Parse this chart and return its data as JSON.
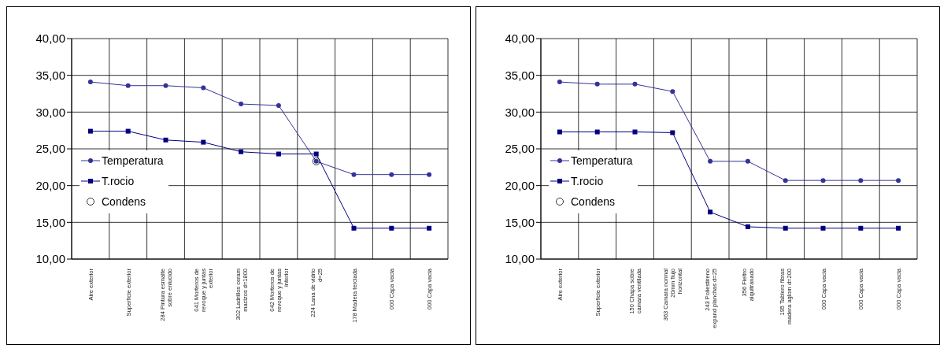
{
  "chart_data": [
    {
      "type": "line",
      "categories": [
        "Aire exterior",
        "Superficie exterior",
        "284 Pintura esmalte sobre enlucido",
        "041 Morteros de revoque y juntas exterior",
        "302 Ladrillos ceram macizos d=1800",
        "042 Morteros de revoque y juntas interior",
        "224 Lana de vidrio d=25",
        "178 Madera terciada",
        "000 Capa vacia",
        "000 Capa vacia"
      ],
      "series": [
        {
          "name": "Temperatura",
          "color": "#333399",
          "marker": "circle",
          "values": [
            34.1,
            33.6,
            33.6,
            33.3,
            31.1,
            30.9,
            23.3,
            21.5,
            21.5,
            21.5
          ]
        },
        {
          "name": "T.rocio",
          "color": "#000080",
          "marker": "square",
          "values": [
            27.4,
            27.4,
            26.2,
            25.9,
            24.6,
            24.3,
            24.3,
            14.2,
            14.2,
            14.2
          ]
        },
        {
          "name": "Condens",
          "type": "scatter",
          "color": "#000000",
          "marker": "circle",
          "values": [
            null,
            null,
            null,
            null,
            null,
            null,
            23.3,
            null,
            null,
            null
          ]
        }
      ],
      "ylim": [
        10,
        40
      ],
      "yticks": [
        {
          "value": 10,
          "label": "10,00"
        },
        {
          "value": 15,
          "label": "15,00"
        },
        {
          "value": 20,
          "label": "20,00"
        },
        {
          "value": 25,
          "label": "25,00"
        },
        {
          "value": 30,
          "label": "30,00"
        },
        {
          "value": 35,
          "label": "35,00"
        },
        {
          "value": 40,
          "label": "40,00"
        }
      ],
      "grid": true,
      "legend": "left"
    },
    {
      "type": "line",
      "categories": [
        "Aire exterior",
        "Superficie exterior",
        "150 Chapa sobre camara ventilada",
        "363 Camara normal 20mm flujo horizontal",
        "243 Poliestireno expand planchas d=25",
        "356 Fieltro alquitranado",
        "195 Tablero fibras madera aglom d=200",
        "000 Capa vacia",
        "000 Capa vacia",
        "000 Capa vacia"
      ],
      "series": [
        {
          "name": "Temperatura",
          "color": "#333399",
          "marker": "circle",
          "values": [
            34.1,
            33.8,
            33.8,
            32.8,
            23.3,
            23.3,
            20.7,
            20.7,
            20.7,
            20.7
          ]
        },
        {
          "name": "T.rocio",
          "color": "#000080",
          "marker": "square",
          "values": [
            27.3,
            27.3,
            27.3,
            27.2,
            16.4,
            14.4,
            14.2,
            14.2,
            14.2,
            14.2
          ]
        },
        {
          "name": "Condens",
          "type": "scatter",
          "color": "#000000",
          "marker": "circle",
          "values": [
            null,
            null,
            null,
            null,
            null,
            null,
            null,
            null,
            null,
            null
          ]
        }
      ],
      "ylim": [
        10,
        40
      ],
      "yticks": [
        {
          "value": 10,
          "label": "10,00"
        },
        {
          "value": 15,
          "label": "15,00"
        },
        {
          "value": 20,
          "label": "20,00"
        },
        {
          "value": 25,
          "label": "25,00"
        },
        {
          "value": 30,
          "label": "30,00"
        },
        {
          "value": 35,
          "label": "35,00"
        },
        {
          "value": 40,
          "label": "40,00"
        }
      ],
      "grid": true,
      "legend": "left"
    }
  ]
}
